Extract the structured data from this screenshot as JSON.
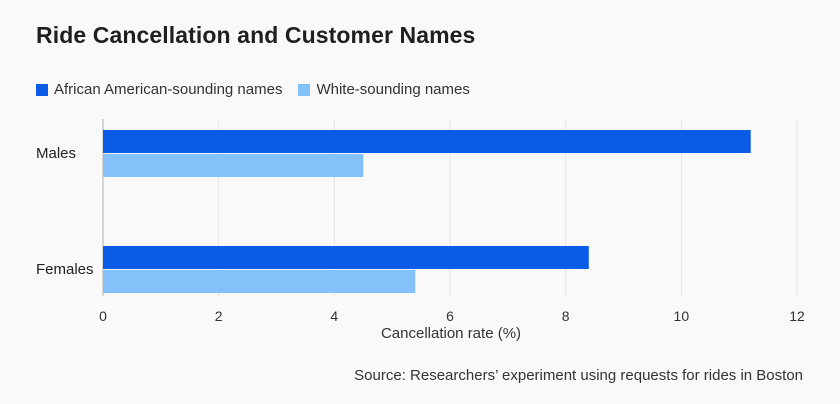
{
  "chart_data": {
    "type": "bar",
    "orientation": "horizontal",
    "title": "Ride Cancellation and Customer Names",
    "categories": [
      "Males",
      "Females"
    ],
    "series": [
      {
        "name": "African American-sounding names",
        "color": "#0a5ce6",
        "values": [
          11.2,
          8.4
        ]
      },
      {
        "name": "White-sounding names",
        "color": "#84c1fb",
        "values": [
          4.5,
          5.4
        ]
      }
    ],
    "xlabel": "Cancellation rate (%)",
    "ylabel": "",
    "xlim": [
      0,
      12
    ],
    "xticks": [
      0,
      2,
      4,
      6,
      8,
      10,
      12
    ],
    "grid": true,
    "legend": "top-left"
  },
  "footer": {
    "source": "Source: Researchers’ experiment using requests for rides in Boston"
  }
}
